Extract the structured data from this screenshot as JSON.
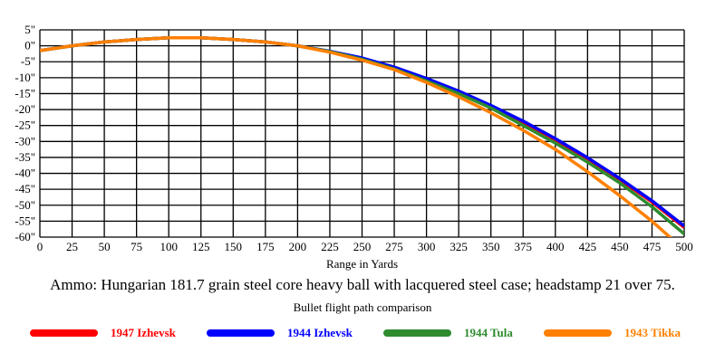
{
  "chart_data": {
    "type": "line",
    "title": "Bullet flight path comparison",
    "caption": "Ammo:  Hungarian 181.7 grain steel core heavy ball with lacquered steel case; headstamp 21 over 75.",
    "xlabel": "Range in Yards",
    "ylabel": "",
    "xlim": [
      0,
      500
    ],
    "ylim": [
      -60,
      5
    ],
    "xticks": [
      0,
      25,
      50,
      75,
      100,
      125,
      150,
      175,
      200,
      225,
      250,
      275,
      300,
      325,
      350,
      375,
      400,
      425,
      450,
      475,
      500
    ],
    "yticks": [
      5,
      0,
      -5,
      -10,
      -15,
      -20,
      -25,
      -30,
      -35,
      -40,
      -45,
      -50,
      -55,
      -60
    ],
    "ytick_suffix": "\"",
    "grid": true,
    "legend_position": "bottom",
    "x": [
      0,
      25,
      50,
      75,
      100,
      125,
      150,
      175,
      200,
      225,
      250,
      275,
      300,
      325,
      350,
      375,
      400,
      425,
      450,
      475,
      500
    ],
    "series": [
      {
        "name": "1947 Izhevsk",
        "color": "#ff0000",
        "values": [
          -1.5,
          0,
          1.2,
          2,
          2.5,
          2.5,
          2,
          1.2,
          0,
          -1.8,
          -4,
          -7,
          -10.5,
          -14.5,
          -19,
          -24,
          -29.5,
          -35.5,
          -42,
          -49,
          -57
        ]
      },
      {
        "name": "1944 Izhevsk",
        "color": "#0000ff",
        "values": [
          -1.5,
          0,
          1.2,
          2,
          2.5,
          2.5,
          2,
          1.2,
          0,
          -1.7,
          -3.8,
          -6.7,
          -10.2,
          -14.2,
          -18.7,
          -23.6,
          -29.1,
          -35.1,
          -41.6,
          -48.6,
          -56.5
        ]
      },
      {
        "name": "1944 Tula",
        "color": "#2e8b2e",
        "values": [
          -1.5,
          0,
          1.2,
          2,
          2.5,
          2.5,
          2,
          1.2,
          0,
          -1.8,
          -4.2,
          -7.3,
          -11,
          -15,
          -19.5,
          -25,
          -30.5,
          -36.5,
          -43,
          -50.5,
          -59
        ]
      },
      {
        "name": "1943 Tikka",
        "color": "#ff8000",
        "values": [
          -1.5,
          0,
          1.2,
          2,
          2.5,
          2.5,
          2,
          1.2,
          0,
          -2,
          -4.5,
          -7.5,
          -11.5,
          -16,
          -21,
          -26.5,
          -32.5,
          -39.5,
          -47,
          -55,
          -64
        ]
      }
    ]
  }
}
